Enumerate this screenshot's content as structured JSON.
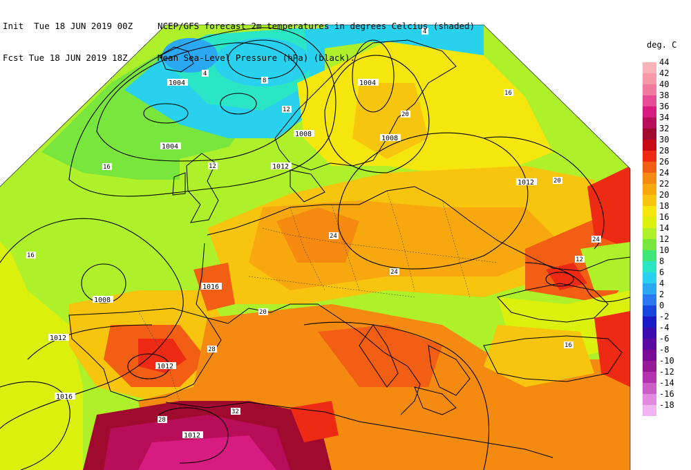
{
  "header": {
    "init_label": "Init  Tue 18 JUN 2019 00Z",
    "fcst_label": "Fcst Tue 18 JUN 2019 18Z",
    "title_line1": "NCEP/GFS forecast 2m temperatures in degrees Celcius (shaded)",
    "title_line2": "Mean Sea-Level Pressure (hPa) (black)."
  },
  "legend": {
    "title": "deg. C",
    "entries": [
      {
        "label": "44",
        "color": "#f7b3b8"
      },
      {
        "label": "42",
        "color": "#f59aa6"
      },
      {
        "label": "40",
        "color": "#f07aa0"
      },
      {
        "label": "38",
        "color": "#e84c96"
      },
      {
        "label": "36",
        "color": "#d81b80"
      },
      {
        "label": "34",
        "color": "#b80e5a"
      },
      {
        "label": "32",
        "color": "#a00a2e"
      },
      {
        "label": "30",
        "color": "#c80a14"
      },
      {
        "label": "28",
        "color": "#ee2a14"
      },
      {
        "label": "26",
        "color": "#f25e14"
      },
      {
        "label": "24",
        "color": "#f58a10"
      },
      {
        "label": "22",
        "color": "#f7a80e"
      },
      {
        "label": "20",
        "color": "#f7c40e"
      },
      {
        "label": "18",
        "color": "#f5e60e"
      },
      {
        "label": "16",
        "color": "#dcf00e"
      },
      {
        "label": "14",
        "color": "#aef02a"
      },
      {
        "label": "12",
        "color": "#78e63c"
      },
      {
        "label": "10",
        "color": "#3ee67a"
      },
      {
        "label": "8",
        "color": "#2ae6c4"
      },
      {
        "label": "6",
        "color": "#28d2ee"
      },
      {
        "label": "4",
        "color": "#2aa8f2"
      },
      {
        "label": "2",
        "color": "#2a78f0"
      },
      {
        "label": "0",
        "color": "#1a46e0"
      },
      {
        "label": "-2",
        "color": "#1a1ac8"
      },
      {
        "label": "-4",
        "color": "#3a0cb0"
      },
      {
        "label": "-6",
        "color": "#5a0aa0"
      },
      {
        "label": "-8",
        "color": "#780a96"
      },
      {
        "label": "-10",
        "color": "#961a96"
      },
      {
        "label": "-12",
        "color": "#b432ae"
      },
      {
        "label": "-14",
        "color": "#cc5ec8"
      },
      {
        "label": "-16",
        "color": "#e08ae0"
      },
      {
        "label": "-18",
        "color": "#f0b4f0"
      }
    ]
  },
  "isobars": [
    "1004",
    "1004",
    "1004",
    "1008",
    "1008",
    "1012",
    "1012",
    "1012",
    "1012",
    "1016",
    "1016",
    "1008",
    "1012"
  ],
  "temp_labels": [
    "4",
    "4",
    "8",
    "12",
    "12",
    "16",
    "20",
    "24",
    "28",
    "32",
    "20",
    "16",
    "24",
    "20",
    "16",
    "12",
    "16",
    "24",
    "28"
  ]
}
